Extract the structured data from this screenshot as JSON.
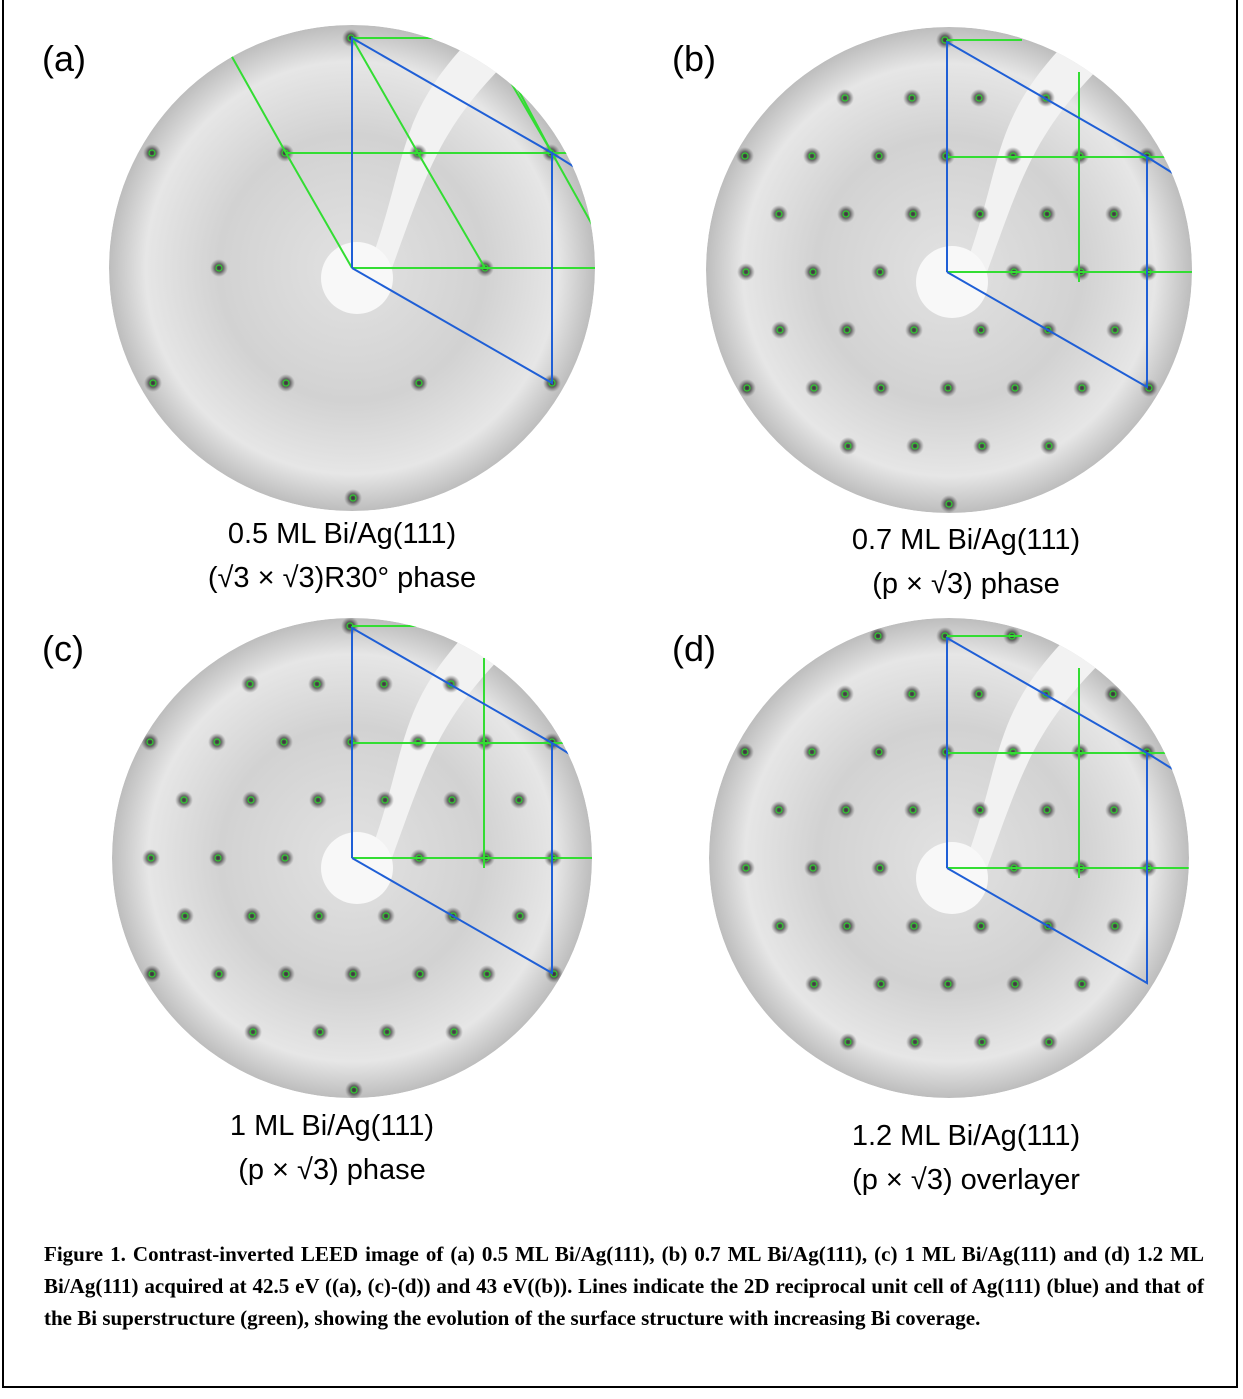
{
  "figure": {
    "panels": [
      {
        "label": "(a)",
        "caption": [
          "0.5 ML Bi/Ag(111)",
          "(√3 × √3)R30° phase"
        ]
      },
      {
        "label": "(b)",
        "caption": [
          "0.7 ML Bi/Ag(111)",
          "(p × √3) phase"
        ]
      },
      {
        "label": "(c)",
        "caption": [
          "1 ML Bi/Ag(111)",
          "(p × √3) phase"
        ]
      },
      {
        "label": "(d)",
        "caption": [
          "1.2 ML Bi/Ag(111)",
          "(p × √3) overlayer"
        ]
      }
    ],
    "caption": "Figure 1. Contrast-inverted LEED image of (a) 0.5 ML Bi/Ag(111), (b) 0.7 ML Bi/Ag(111), (c) 1 ML Bi/Ag(111) and (d) 1.2 ML Bi/Ag(111) acquired at 42.5 eV ((a), (c)-(d)) and 43 eV((b)). Lines indicate the 2D reciprocal unit cell of Ag(111) (blue) and that of the Bi superstructure (green), showing the evolution of the surface structure with increasing Bi coverage."
  }
}
